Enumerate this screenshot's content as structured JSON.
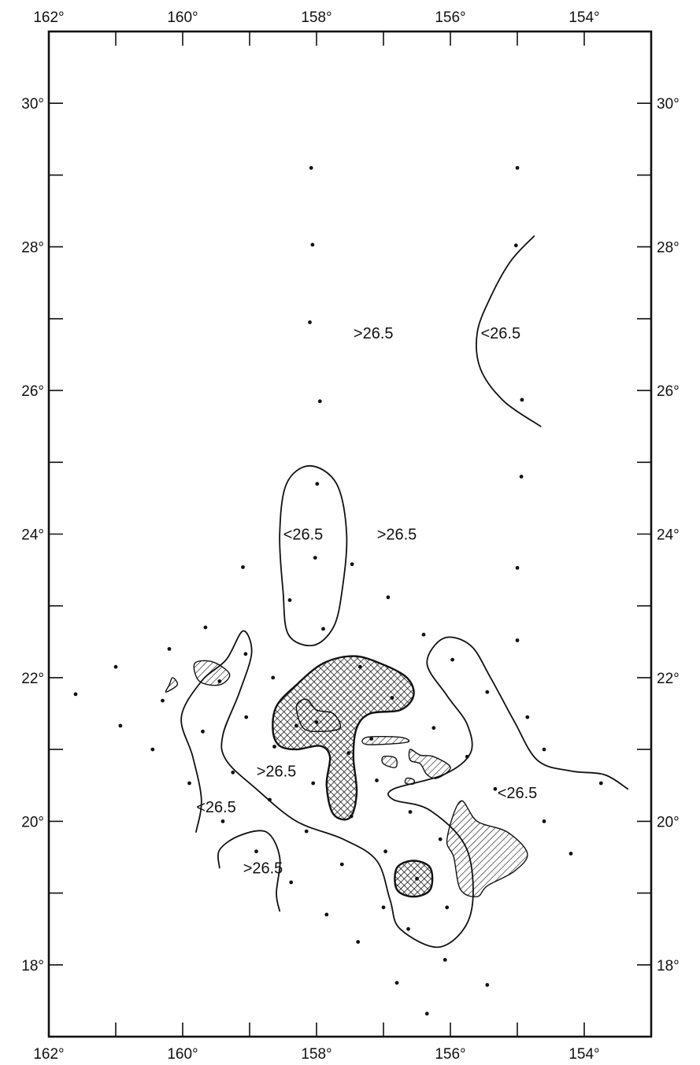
{
  "axes": {
    "top_labels": [
      {
        "text": "162°",
        "lon": -162
      },
      {
        "text": "160°",
        "lon": -160
      },
      {
        "text": "158°",
        "lon": -158
      },
      {
        "text": "156°",
        "lon": -156
      },
      {
        "text": "154°",
        "lon": -154
      }
    ],
    "bottom_labels": [
      {
        "text": "162°",
        "lon": -162
      },
      {
        "text": "160°",
        "lon": -160
      },
      {
        "text": "158°",
        "lon": -158
      },
      {
        "text": "156°",
        "lon": -156
      },
      {
        "text": "154°",
        "lon": -154
      }
    ],
    "left_labels": [
      {
        "text": "30°",
        "lat": 30
      },
      {
        "text": "28°",
        "lat": 28
      },
      {
        "text": "26°",
        "lat": 26
      },
      {
        "text": "24°",
        "lat": 24
      },
      {
        "text": "22°",
        "lat": 22
      },
      {
        "text": "20°",
        "lat": 20
      },
      {
        "text": "18°",
        "lat": 18
      }
    ],
    "right_labels": [
      {
        "text": "30°",
        "lat": 30
      },
      {
        "text": "28°",
        "lat": 28
      },
      {
        "text": "26°",
        "lat": 26
      },
      {
        "text": "24°",
        "lat": 24
      },
      {
        "text": "22°",
        "lat": 22
      },
      {
        "text": "20°",
        "lat": 20
      },
      {
        "text": "18°",
        "lat": 18
      }
    ],
    "lon_range": [
      -162,
      -153
    ],
    "lat_range": [
      17,
      31
    ],
    "tick_lons": [
      -161,
      -160,
      -159,
      -158,
      -157,
      -156,
      -155,
      -154
    ],
    "tick_lats": [
      30,
      29,
      28,
      27,
      26,
      25,
      24,
      23,
      22,
      21,
      20,
      19,
      18
    ]
  },
  "contour_labels": [
    {
      "text": ">26.5",
      "lon": -157.15,
      "lat": 26.8
    },
    {
      "text": "<26.5",
      "lon": -155.25,
      "lat": 26.8
    },
    {
      "text": "<26.5",
      "lon": -158.2,
      "lat": 24.0
    },
    {
      "text": ">26.5",
      "lon": -156.8,
      "lat": 24.0
    },
    {
      "text": ">26.5",
      "lon": -158.6,
      "lat": 20.7
    },
    {
      "text": "<26.5",
      "lon": -159.5,
      "lat": 20.2
    },
    {
      "text": "<26.5",
      "lon": -155.0,
      "lat": 20.4
    },
    {
      "text": ">26.5",
      "lon": -158.8,
      "lat": 19.35
    }
  ],
  "station_points": [
    [
      -158.08,
      29.1
    ],
    [
      -155.0,
      29.1
    ],
    [
      -158.06,
      28.03
    ],
    [
      -155.02,
      28.02
    ],
    [
      -158.1,
      26.95
    ],
    [
      -157.95,
      25.85
    ],
    [
      -154.93,
      25.87
    ],
    [
      -157.99,
      24.7
    ],
    [
      -154.94,
      24.8
    ],
    [
      -158.02,
      23.67
    ],
    [
      -157.47,
      23.58
    ],
    [
      -155.0,
      23.53
    ],
    [
      -159.1,
      23.54
    ],
    [
      -156.93,
      23.12
    ],
    [
      -158.4,
      23.08
    ],
    [
      -157.9,
      22.68
    ],
    [
      -156.4,
      22.6
    ],
    [
      -159.66,
      22.7
    ],
    [
      -155.0,
      22.52
    ],
    [
      -160.2,
      22.4
    ],
    [
      -159.06,
      22.33
    ],
    [
      -155.97,
      22.25
    ],
    [
      -161.0,
      22.15
    ],
    [
      -157.35,
      22.15
    ],
    [
      -158.65,
      22.0
    ],
    [
      -159.45,
      21.95
    ],
    [
      -155.45,
      21.8
    ],
    [
      -156.87,
      21.72
    ],
    [
      -161.6,
      21.77
    ],
    [
      -160.3,
      21.68
    ],
    [
      -159.05,
      21.45
    ],
    [
      -154.85,
      21.45
    ],
    [
      -160.93,
      21.33
    ],
    [
      -158.3,
      21.33
    ],
    [
      -158.0,
      21.38
    ],
    [
      -156.25,
      21.3
    ],
    [
      -159.7,
      21.25
    ],
    [
      -157.18,
      21.15
    ],
    [
      -158.63,
      21.04
    ],
    [
      -160.45,
      21.0
    ],
    [
      -154.6,
      21.0
    ],
    [
      -157.52,
      20.95
    ],
    [
      -155.75,
      20.9
    ],
    [
      -157.1,
      20.57
    ],
    [
      -159.25,
      20.68
    ],
    [
      -158.05,
      20.53
    ],
    [
      -159.9,
      20.53
    ],
    [
      -153.75,
      20.53
    ],
    [
      -155.33,
      20.45
    ],
    [
      -158.7,
      20.3
    ],
    [
      -156.6,
      20.13
    ],
    [
      -157.48,
      20.07
    ],
    [
      -159.4,
      20.0
    ],
    [
      -154.6,
      20.0
    ],
    [
      -158.15,
      19.86
    ],
    [
      -156.15,
      19.75
    ],
    [
      -158.9,
      19.58
    ],
    [
      -156.97,
      19.58
    ],
    [
      -154.2,
      19.55
    ],
    [
      -157.62,
      19.4
    ],
    [
      -156.5,
      19.2
    ],
    [
      -158.38,
      19.15
    ],
    [
      -157.0,
      18.8
    ],
    [
      -156.05,
      18.8
    ],
    [
      -157.85,
      18.7
    ],
    [
      -156.63,
      18.5
    ],
    [
      -157.38,
      18.32
    ],
    [
      -156.08,
      18.07
    ],
    [
      -156.8,
      17.75
    ],
    [
      -155.45,
      17.72
    ],
    [
      -156.35,
      17.32
    ]
  ],
  "contours": [
    [
      [
        -154.75,
        28.15
      ],
      [
        -155.1,
        27.8
      ],
      [
        -155.4,
        27.3
      ],
      [
        -155.6,
        26.8
      ],
      [
        -155.55,
        26.3
      ],
      [
        -155.2,
        25.85
      ],
      [
        -154.65,
        25.5
      ]
    ],
    [
      [
        -158.1,
        24.95
      ],
      [
        -157.7,
        24.7
      ],
      [
        -157.55,
        24.0
      ],
      [
        -157.62,
        23.2
      ],
      [
        -157.75,
        22.7
      ],
      [
        -158.05,
        22.45
      ],
      [
        -158.42,
        22.6
      ],
      [
        -158.5,
        23.2
      ],
      [
        -158.55,
        24.0
      ],
      [
        -158.45,
        24.7
      ],
      [
        -158.1,
        24.95
      ]
    ],
    [
      [
        -159.8,
        19.85
      ],
      [
        -159.72,
        20.3
      ],
      [
        -159.85,
        20.9
      ],
      [
        -160.02,
        21.45
      ],
      [
        -159.72,
        21.95
      ],
      [
        -159.35,
        22.25
      ],
      [
        -159.1,
        22.65
      ],
      [
        -158.97,
        22.35
      ],
      [
        -159.15,
        21.8
      ],
      [
        -159.4,
        21.2
      ],
      [
        -159.35,
        20.85
      ],
      [
        -158.9,
        20.45
      ],
      [
        -158.3,
        20.0
      ],
      [
        -157.6,
        19.75
      ],
      [
        -157.1,
        19.45
      ],
      [
        -156.9,
        18.9
      ],
      [
        -156.75,
        18.5
      ],
      [
        -156.15,
        18.25
      ],
      [
        -155.7,
        18.7
      ],
      [
        -155.75,
        19.6
      ],
      [
        -156.3,
        20.15
      ],
      [
        -156.85,
        20.3
      ],
      [
        -156.85,
        20.45
      ],
      [
        -156.1,
        20.65
      ],
      [
        -155.7,
        20.95
      ],
      [
        -155.75,
        21.35
      ],
      [
        -156.05,
        21.75
      ],
      [
        -156.35,
        22.2
      ],
      [
        -156.1,
        22.55
      ],
      [
        -155.7,
        22.45
      ],
      [
        -155.4,
        22.0
      ],
      [
        -155.05,
        21.4
      ],
      [
        -154.7,
        20.85
      ],
      [
        -154.2,
        20.7
      ],
      [
        -153.7,
        20.65
      ],
      [
        -153.35,
        20.45
      ]
    ],
    [
      [
        -159.45,
        19.35
      ],
      [
        -159.45,
        19.6
      ],
      [
        -159.15,
        19.8
      ],
      [
        -158.75,
        19.85
      ],
      [
        -158.55,
        19.5
      ],
      [
        -158.6,
        19.0
      ],
      [
        -158.55,
        18.75
      ]
    ]
  ],
  "islands": [
    [
      [
        -159.82,
        22.2
      ],
      [
        -159.55,
        22.22
      ],
      [
        -159.3,
        22.05
      ],
      [
        -159.45,
        21.9
      ],
      [
        -159.75,
        21.95
      ],
      [
        -159.82,
        22.2
      ]
    ],
    [
      [
        -160.15,
        22.0
      ],
      [
        -160.08,
        21.9
      ],
      [
        -160.25,
        21.8
      ],
      [
        -160.2,
        21.9
      ],
      [
        -160.15,
        22.0
      ]
    ],
    [
      [
        -157.25,
        21.17
      ],
      [
        -156.75,
        21.17
      ],
      [
        -156.65,
        21.1
      ],
      [
        -157.25,
        21.07
      ],
      [
        -157.25,
        21.17
      ]
    ],
    [
      [
        -157.0,
        20.9
      ],
      [
        -156.82,
        20.88
      ],
      [
        -156.82,
        20.75
      ],
      [
        -157.0,
        20.8
      ],
      [
        -157.0,
        20.9
      ]
    ],
    [
      [
        -156.6,
        21.0
      ],
      [
        -156.45,
        20.92
      ],
      [
        -156.25,
        20.9
      ],
      [
        -156.0,
        20.75
      ],
      [
        -156.2,
        20.6
      ],
      [
        -156.35,
        20.65
      ],
      [
        -156.45,
        20.8
      ],
      [
        -156.6,
        20.85
      ],
      [
        -156.6,
        21.0
      ]
    ],
    [
      [
        -156.65,
        20.6
      ],
      [
        -156.55,
        20.58
      ],
      [
        -156.55,
        20.52
      ],
      [
        -156.67,
        20.53
      ],
      [
        -156.65,
        20.6
      ]
    ],
    [
      [
        -155.85,
        20.28
      ],
      [
        -155.6,
        20.0
      ],
      [
        -155.15,
        19.85
      ],
      [
        -154.85,
        19.55
      ],
      [
        -155.05,
        19.3
      ],
      [
        -155.45,
        19.1
      ],
      [
        -155.6,
        18.95
      ],
      [
        -155.85,
        19.05
      ],
      [
        -155.95,
        19.5
      ],
      [
        -156.05,
        19.75
      ],
      [
        -155.85,
        20.28
      ]
    ],
    [
      [
        -158.3,
        21.6
      ],
      [
        -158.15,
        21.7
      ],
      [
        -158.0,
        21.55
      ],
      [
        -157.75,
        21.5
      ],
      [
        -157.65,
        21.3
      ],
      [
        -157.95,
        21.25
      ],
      [
        -158.2,
        21.3
      ],
      [
        -158.3,
        21.6
      ]
    ]
  ],
  "crosshatch_zones": [
    [
      [
        -158.65,
        21.25
      ],
      [
        -158.6,
        21.6
      ],
      [
        -158.3,
        21.9
      ],
      [
        -157.9,
        22.2
      ],
      [
        -157.45,
        22.3
      ],
      [
        -157.05,
        22.2
      ],
      [
        -156.65,
        22.0
      ],
      [
        -156.55,
        21.75
      ],
      [
        -156.75,
        21.55
      ],
      [
        -157.2,
        21.5
      ],
      [
        -157.4,
        21.3
      ],
      [
        -157.45,
        20.9
      ],
      [
        -157.4,
        20.4
      ],
      [
        -157.5,
        20.05
      ],
      [
        -157.75,
        20.1
      ],
      [
        -157.85,
        20.5
      ],
      [
        -157.8,
        20.9
      ],
      [
        -157.95,
        21.05
      ],
      [
        -158.3,
        21.0
      ],
      [
        -158.55,
        21.05
      ],
      [
        -158.65,
        21.25
      ]
    ],
    [
      [
        -156.55,
        19.45
      ],
      [
        -156.3,
        19.35
      ],
      [
        -156.3,
        19.05
      ],
      [
        -156.55,
        18.95
      ],
      [
        -156.8,
        19.05
      ],
      [
        -156.8,
        19.35
      ],
      [
        -156.55,
        19.45
      ]
    ]
  ]
}
